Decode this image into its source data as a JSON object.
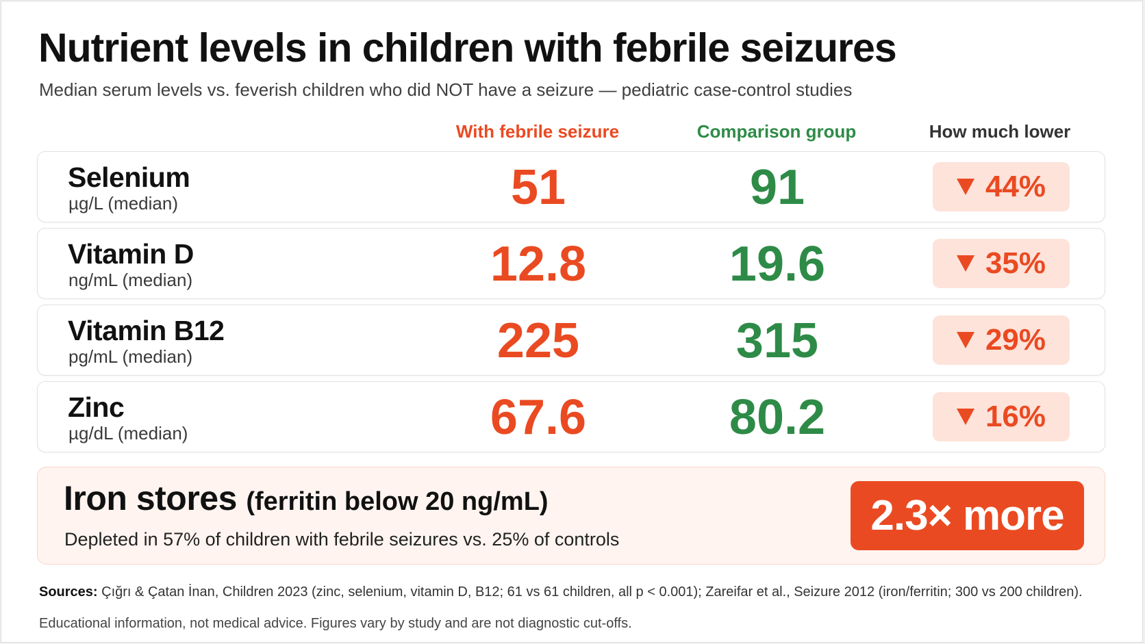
{
  "title": "Nutrient levels in children with febrile seizures",
  "subtitle": "Median serum levels vs. feverish children who did NOT have a seizure — pediatric case-control studies",
  "columns": {
    "seizure": "With febrile seizure",
    "comparison": "Comparison group",
    "lower": "How much lower"
  },
  "colors": {
    "seizure": "#ea4a22",
    "comparison": "#2e8b47",
    "badge_bg": "#fde3da",
    "highlight_bg": "#fff4f0"
  },
  "chart_data": {
    "type": "table",
    "title": "Nutrient levels in children with febrile seizures",
    "subtitle": "Median serum levels vs. feverish children who did NOT have a seizure — pediatric case-control studies",
    "columns": [
      "With febrile seizure",
      "Comparison group",
      "How much lower"
    ],
    "rows": [
      {
        "name": "Selenium",
        "unit": "µg/L (median)",
        "seizure": "51",
        "comparison": "91",
        "lower": "44%"
      },
      {
        "name": "Vitamin D",
        "unit": "ng/mL (median)",
        "seizure": "12.8",
        "comparison": "19.6",
        "lower": "35%"
      },
      {
        "name": "Vitamin B12",
        "unit": "pg/mL (median)",
        "seizure": "225",
        "comparison": "315",
        "lower": "29%"
      },
      {
        "name": "Zinc",
        "unit": "µg/dL (median)",
        "seizure": "67.6",
        "comparison": "80.2",
        "lower": "16%"
      }
    ],
    "highlight": {
      "title": "Iron stores",
      "title_paren": "(ferritin below 20 ng/mL)",
      "description": "Depleted in 57% of children with febrile seizures vs. 25% of controls",
      "badge": "2.3× more",
      "seizure_pct": 57,
      "control_pct": 25
    }
  },
  "footer": {
    "sources_label": "Sources:",
    "sources_text": " Çığrı & Çatan İnan, Children 2023 (zinc, selenium, vitamin D, B12; 61 vs 61 children, all p < 0.001); Zareifar et al., Seizure 2012 (iron/ferritin; 300 vs 200 children).",
    "disclaimer": "Educational information, not medical advice. Figures vary by study and are not diagnostic cut-offs."
  }
}
